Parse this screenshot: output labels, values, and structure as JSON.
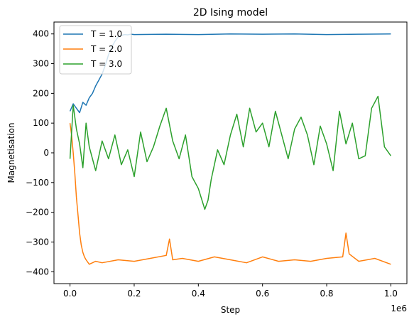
{
  "chart_data": {
    "type": "line",
    "title": "2D Ising model",
    "xlabel": "Step",
    "ylabel": "Magnetisation",
    "x_offset_label": "1e6",
    "xlim": [
      -50000,
      1050000
    ],
    "ylim": [
      -440,
      440
    ],
    "x_ticks": [
      0,
      200000,
      400000,
      600000,
      800000,
      1000000
    ],
    "x_tick_labels": [
      "0.0",
      "0.2",
      "0.4",
      "0.6",
      "0.8",
      "1.0"
    ],
    "y_ticks": [
      -400,
      -300,
      -200,
      -100,
      0,
      100,
      200,
      300,
      400
    ],
    "y_tick_labels": [
      "−400",
      "−300",
      "−200",
      "−100",
      "0",
      "100",
      "200",
      "300",
      "400"
    ],
    "grid": false,
    "legend_position": "top-left",
    "series": [
      {
        "name": "T = 1.0",
        "color": "#1f77b4",
        "x": [
          0,
          10000,
          20000,
          30000,
          40000,
          50000,
          60000,
          70000,
          80000,
          90000,
          100000,
          110000,
          120000,
          130000,
          140000,
          150000,
          160000,
          170000,
          180000,
          190000,
          200000,
          300000,
          400000,
          500000,
          600000,
          700000,
          800000,
          900000,
          1000000
        ],
        "y": [
          140,
          165,
          150,
          135,
          170,
          160,
          185,
          200,
          225,
          245,
          265,
          295,
          330,
          355,
          375,
          390,
          395,
          398,
          397,
          399,
          398,
          399,
          398,
          400,
          399,
          400,
          398,
          399,
          400
        ]
      },
      {
        "name": "T = 2.0",
        "color": "#ff7f0e",
        "x": [
          0,
          5000,
          10000,
          15000,
          20000,
          25000,
          30000,
          35000,
          40000,
          45000,
          50000,
          60000,
          80000,
          100000,
          150000,
          200000,
          250000,
          300000,
          310000,
          320000,
          350000,
          400000,
          450000,
          500000,
          550000,
          600000,
          650000,
          700000,
          750000,
          800000,
          850000,
          860000,
          870000,
          900000,
          950000,
          1000000
        ],
        "y": [
          100,
          60,
          0,
          -70,
          -150,
          -210,
          -270,
          -310,
          -335,
          -350,
          -360,
          -375,
          -365,
          -370,
          -360,
          -365,
          -355,
          -345,
          -290,
          -360,
          -355,
          -365,
          -350,
          -360,
          -370,
          -350,
          -365,
          -360,
          -365,
          -355,
          -350,
          -270,
          -340,
          -365,
          -355,
          -375
        ]
      },
      {
        "name": "T = 3.0",
        "color": "#2ca02c",
        "x": [
          0,
          10000,
          20000,
          30000,
          40000,
          50000,
          60000,
          80000,
          100000,
          120000,
          140000,
          160000,
          180000,
          200000,
          220000,
          240000,
          260000,
          280000,
          300000,
          320000,
          340000,
          360000,
          380000,
          400000,
          420000,
          430000,
          440000,
          460000,
          480000,
          500000,
          520000,
          540000,
          560000,
          580000,
          600000,
          620000,
          640000,
          660000,
          680000,
          700000,
          720000,
          740000,
          760000,
          780000,
          800000,
          820000,
          840000,
          860000,
          880000,
          900000,
          920000,
          940000,
          960000,
          980000,
          1000000
        ],
        "y": [
          -20,
          160,
          80,
          30,
          -50,
          100,
          20,
          -60,
          40,
          -20,
          60,
          -40,
          10,
          -80,
          70,
          -30,
          20,
          90,
          150,
          40,
          -20,
          60,
          -80,
          -120,
          -190,
          -160,
          -90,
          10,
          -40,
          60,
          130,
          20,
          150,
          70,
          100,
          20,
          140,
          60,
          -20,
          80,
          120,
          60,
          -40,
          90,
          30,
          -60,
          140,
          30,
          100,
          -20,
          -10,
          150,
          190,
          20,
          -10
        ]
      }
    ]
  }
}
